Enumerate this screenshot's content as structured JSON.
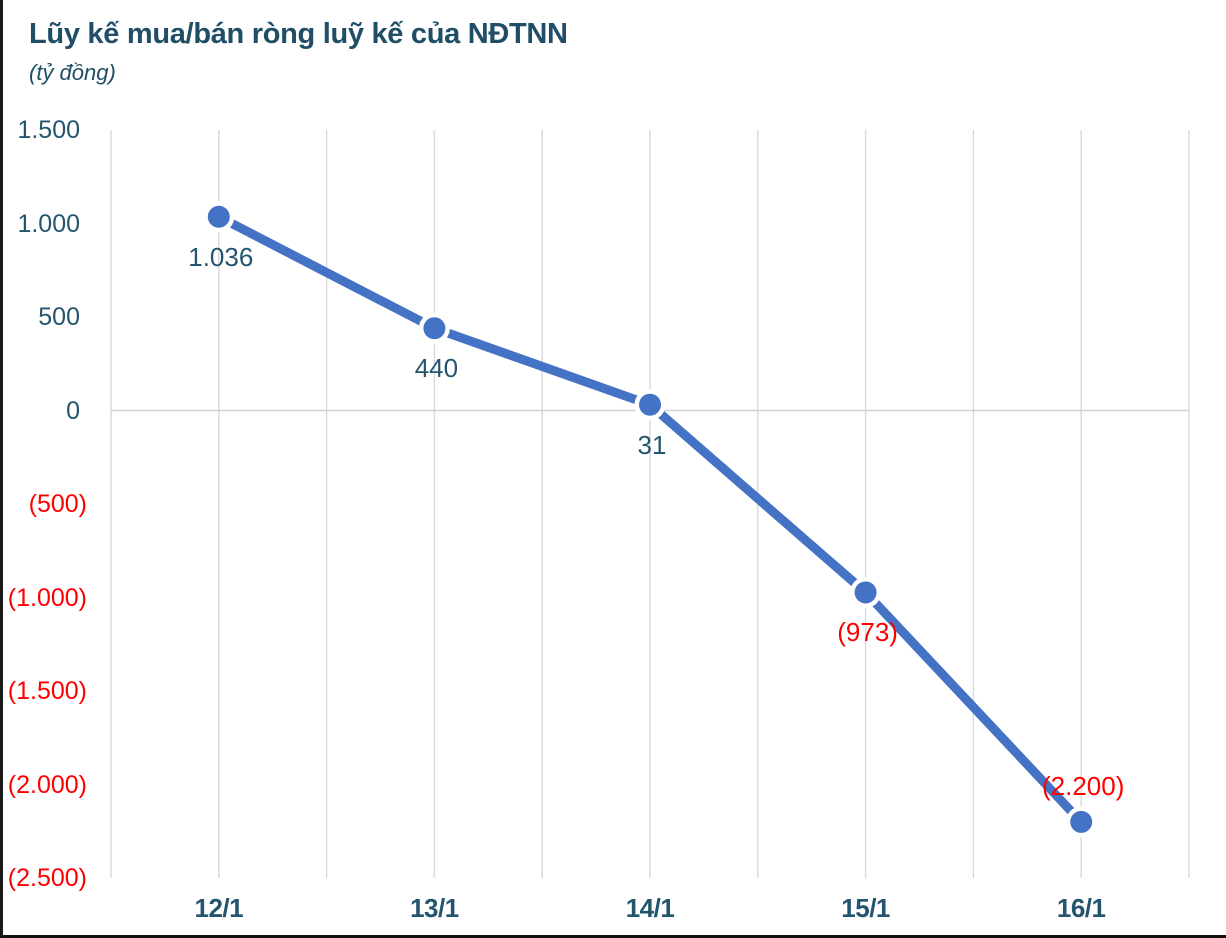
{
  "header": {
    "title": "Lũy kế mua/bán ròng luỹ kế của NĐTNN",
    "subtitle": "(tỷ đồng)"
  },
  "colors": {
    "line": "#4472C4",
    "marker": "#4472C4",
    "positive_text": "#24556F",
    "negative_text": "#FF0000",
    "title_text": "#1F4E66",
    "gridline": "#D9D9D9",
    "zero_line": "#D2D2D2",
    "background": "#FFFFFF"
  },
  "chart_data": {
    "type": "line",
    "title": "Lũy kế mua/bán ròng luỹ kế của NĐTNN",
    "unit_label": "(tỷ đồng)",
    "categories": [
      "12/1",
      "13/1",
      "14/1",
      "15/1",
      "16/1"
    ],
    "values": [
      1036,
      440,
      31,
      -973,
      -2200
    ],
    "data_labels": [
      "1.036",
      "440",
      "31",
      "(973)",
      "(2.200)"
    ],
    "data_label_positions": [
      "below",
      "below",
      "below",
      "below",
      "above"
    ],
    "series_name": "Lũy kế mua/bán ròng của NĐTNN",
    "ylim": [
      -2500,
      1500
    ],
    "ytick_step": 500,
    "ytick_labels": [
      "1.500",
      "1.000",
      "500",
      "0",
      "(500)",
      "(1.000)",
      "(1.500)",
      "(2.000)",
      "(2.500)"
    ],
    "negative_format": "parentheses-red",
    "grid": "vertical gridlines every half category plus horizontal zero line",
    "legend": "none"
  }
}
